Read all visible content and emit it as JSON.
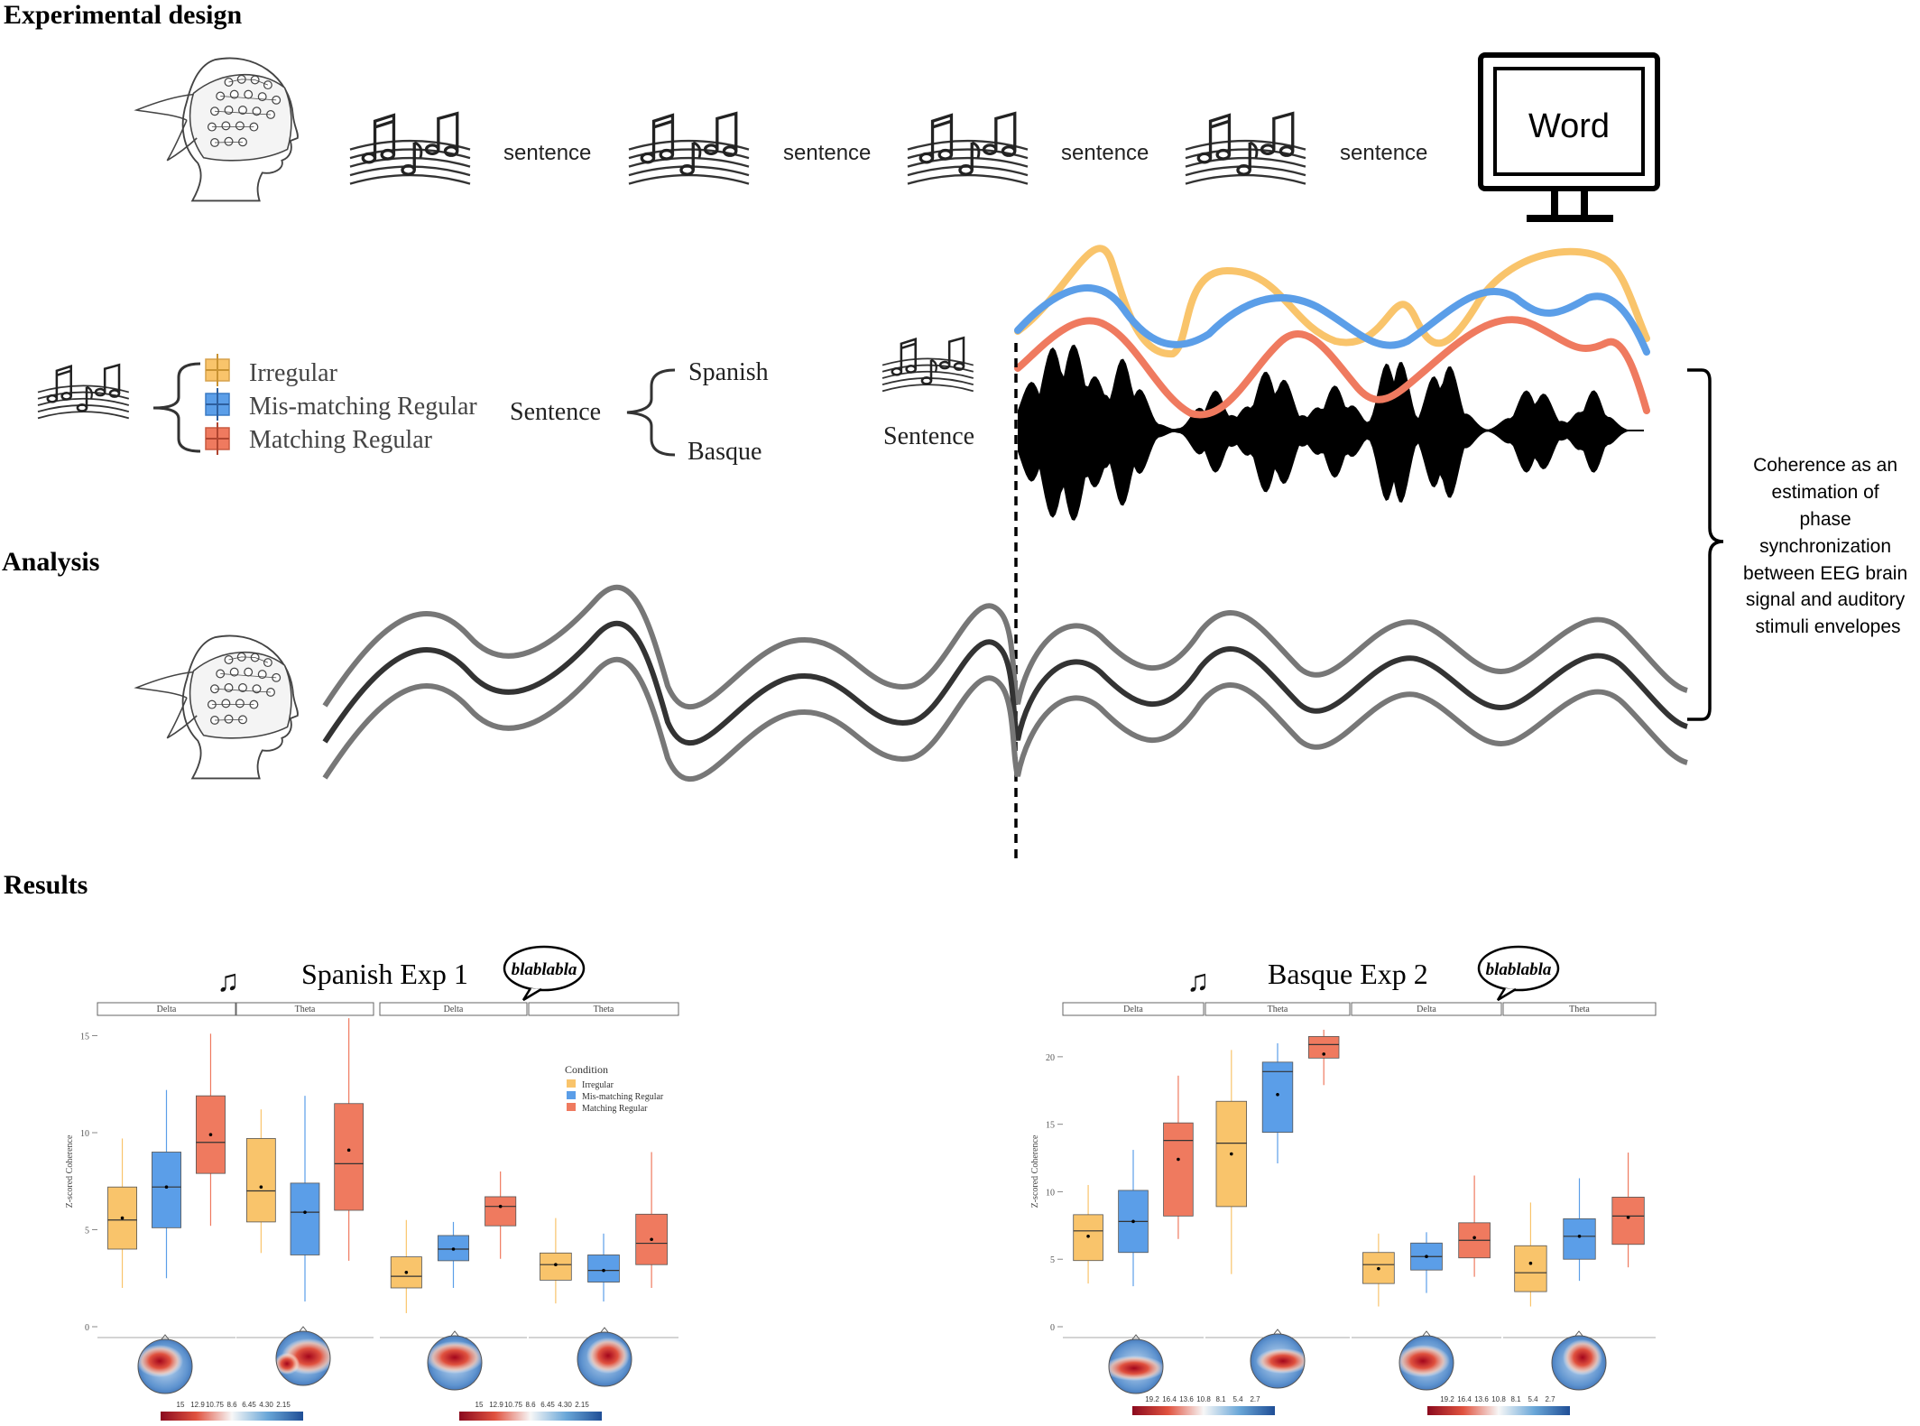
{
  "sections": {
    "design": "Experimental design",
    "analysis": "Analysis",
    "results": "Results"
  },
  "stimulus_row": {
    "sentence_labels": [
      "sentence",
      "sentence",
      "sentence",
      "sentence"
    ],
    "monitor_word": "Word"
  },
  "conditions": {
    "items": [
      "Irregular",
      "Mis-matching Regular",
      "Matching Regular"
    ],
    "sentence_label": "Sentence",
    "languages": [
      "Spanish",
      "Basque"
    ],
    "sentence_label_2": "Sentence"
  },
  "coherence_note": "Coherence as an estimation of phase synchronization between EEG brain signal and auditory stimuli envelopes",
  "colors": {
    "irregular": "#f9c46b",
    "mismatching": "#5b9ee8",
    "matching": "#ef7a5f"
  },
  "icons": [
    "eeg-head-icon",
    "music-note-icon",
    "monitor-icon",
    "speech-bubble-icon"
  ],
  "bubble_text": "blablabla",
  "results": {
    "left_title": "Spanish Exp 1",
    "right_title": "Basque Exp 2",
    "y_axis_label": "Z-scored Coherence",
    "legend_title": "Condition",
    "left_strips": [
      "Delta",
      "Theta",
      "Delta",
      "Theta"
    ],
    "right_strips": [
      "Delta",
      "Theta",
      "Delta",
      "Theta"
    ],
    "left_colorbar_ticks": [
      "15",
      "12.9",
      "10.75",
      "8.6",
      "6.45",
      "4.30",
      "2.15"
    ],
    "right_colorbar_ticks": [
      "19.2",
      "16.4",
      "13.6",
      "10.8",
      "8.1",
      "5.4",
      "2.7"
    ]
  },
  "chart_data": [
    {
      "type": "box",
      "title": "Spanish Exp 1",
      "ylabel": "Z-scored Coherence",
      "ylim": [
        0,
        16
      ],
      "yticks": [
        0,
        5,
        10,
        15
      ],
      "series_names": [
        "Irregular",
        "Mis-matching Regular",
        "Matching Regular"
      ],
      "groups": [
        {
          "label": "Delta",
          "boxes": [
            {
              "min": 2,
              "q1": 4,
              "median": 5.5,
              "q3": 7.2,
              "max": 9.7,
              "mean": 5.6
            },
            {
              "min": 2.5,
              "q1": 5.1,
              "median": 7.2,
              "q3": 9,
              "max": 12.2,
              "mean": 7.2
            },
            {
              "min": 5.2,
              "q1": 7.9,
              "median": 9.5,
              "q3": 11.9,
              "max": 15.1,
              "mean": 9.9
            }
          ]
        },
        {
          "label": "Theta",
          "boxes": [
            {
              "min": 3.8,
              "q1": 5.4,
              "median": 7,
              "q3": 9.7,
              "max": 11.2,
              "mean": 7.2
            },
            {
              "min": 1.3,
              "q1": 3.7,
              "median": 5.9,
              "q3": 7.4,
              "max": 11.9,
              "mean": 5.9
            },
            {
              "min": 3.4,
              "q1": 6,
              "median": 8.4,
              "q3": 11.5,
              "max": 15.9,
              "mean": 9.1
            }
          ]
        },
        {
          "label": "Delta",
          "boxes": [
            {
              "min": 0.7,
              "q1": 2,
              "median": 2.6,
              "q3": 3.6,
              "max": 5.5,
              "mean": 2.8
            },
            {
              "min": 2,
              "q1": 3.4,
              "median": 4,
              "q3": 4.7,
              "max": 5.4,
              "mean": 4
            },
            {
              "min": 3.5,
              "q1": 5.2,
              "median": 6.2,
              "q3": 6.7,
              "max": 8,
              "mean": 6.2
            }
          ]
        },
        {
          "label": "Theta",
          "boxes": [
            {
              "min": 1.2,
              "q1": 2.4,
              "median": 3.2,
              "q3": 3.8,
              "max": 5.6,
              "mean": 3.2
            },
            {
              "min": 1.3,
              "q1": 2.3,
              "median": 2.9,
              "q3": 3.7,
              "max": 4.8,
              "mean": 2.9
            },
            {
              "min": 2,
              "q1": 3.2,
              "median": 4.3,
              "q3": 5.8,
              "max": 9,
              "mean": 4.5
            }
          ]
        }
      ]
    },
    {
      "type": "box",
      "title": "Basque Exp 2",
      "ylabel": "Z-scored Coherence",
      "ylim": [
        0,
        23
      ],
      "yticks": [
        0,
        5,
        10,
        15,
        20
      ],
      "series_names": [
        "Irregular",
        "Mis-matching Regular",
        "Matching Regular"
      ],
      "groups": [
        {
          "label": "Delta",
          "boxes": [
            {
              "min": 3.2,
              "q1": 4.9,
              "median": 7.1,
              "q3": 8.3,
              "max": 10.5,
              "mean": 6.7
            },
            {
              "min": 3,
              "q1": 5.5,
              "median": 7.8,
              "q3": 10.1,
              "max": 13.1,
              "mean": 7.8
            },
            {
              "min": 6.5,
              "q1": 8.2,
              "median": 13.8,
              "q3": 15.1,
              "max": 18.6,
              "mean": 12.4
            }
          ]
        },
        {
          "label": "Theta",
          "boxes": [
            {
              "min": 3.9,
              "q1": 8.9,
              "median": 13.6,
              "q3": 16.7,
              "max": 20.5,
              "mean": 12.8
            },
            {
              "min": 12.1,
              "q1": 14.4,
              "median": 18.9,
              "q3": 19.6,
              "max": 21,
              "mean": 17.2
            },
            {
              "min": 17.9,
              "q1": 19.9,
              "median": 20.9,
              "q3": 21.5,
              "max": 22,
              "mean": 20.2
            }
          ]
        },
        {
          "label": "Delta",
          "boxes": [
            {
              "min": 1.5,
              "q1": 3.2,
              "median": 4.6,
              "q3": 5.5,
              "max": 6.9,
              "mean": 4.3
            },
            {
              "min": 2.5,
              "q1": 4.2,
              "median": 5.2,
              "q3": 6.2,
              "max": 7,
              "mean": 5.2
            },
            {
              "min": 3.7,
              "q1": 5.1,
              "median": 6.4,
              "q3": 7.7,
              "max": 11.2,
              "mean": 6.6
            }
          ]
        },
        {
          "label": "Theta",
          "boxes": [
            {
              "min": 1.5,
              "q1": 2.6,
              "median": 4,
              "q3": 6,
              "max": 9.2,
              "mean": 4.7
            },
            {
              "min": 3.4,
              "q1": 5,
              "median": 6.7,
              "q3": 8,
              "max": 11,
              "mean": 6.7
            },
            {
              "min": 4.4,
              "q1": 6.1,
              "median": 8.2,
              "q3": 9.6,
              "max": 12.9,
              "mean": 8.1
            }
          ]
        }
      ]
    }
  ]
}
